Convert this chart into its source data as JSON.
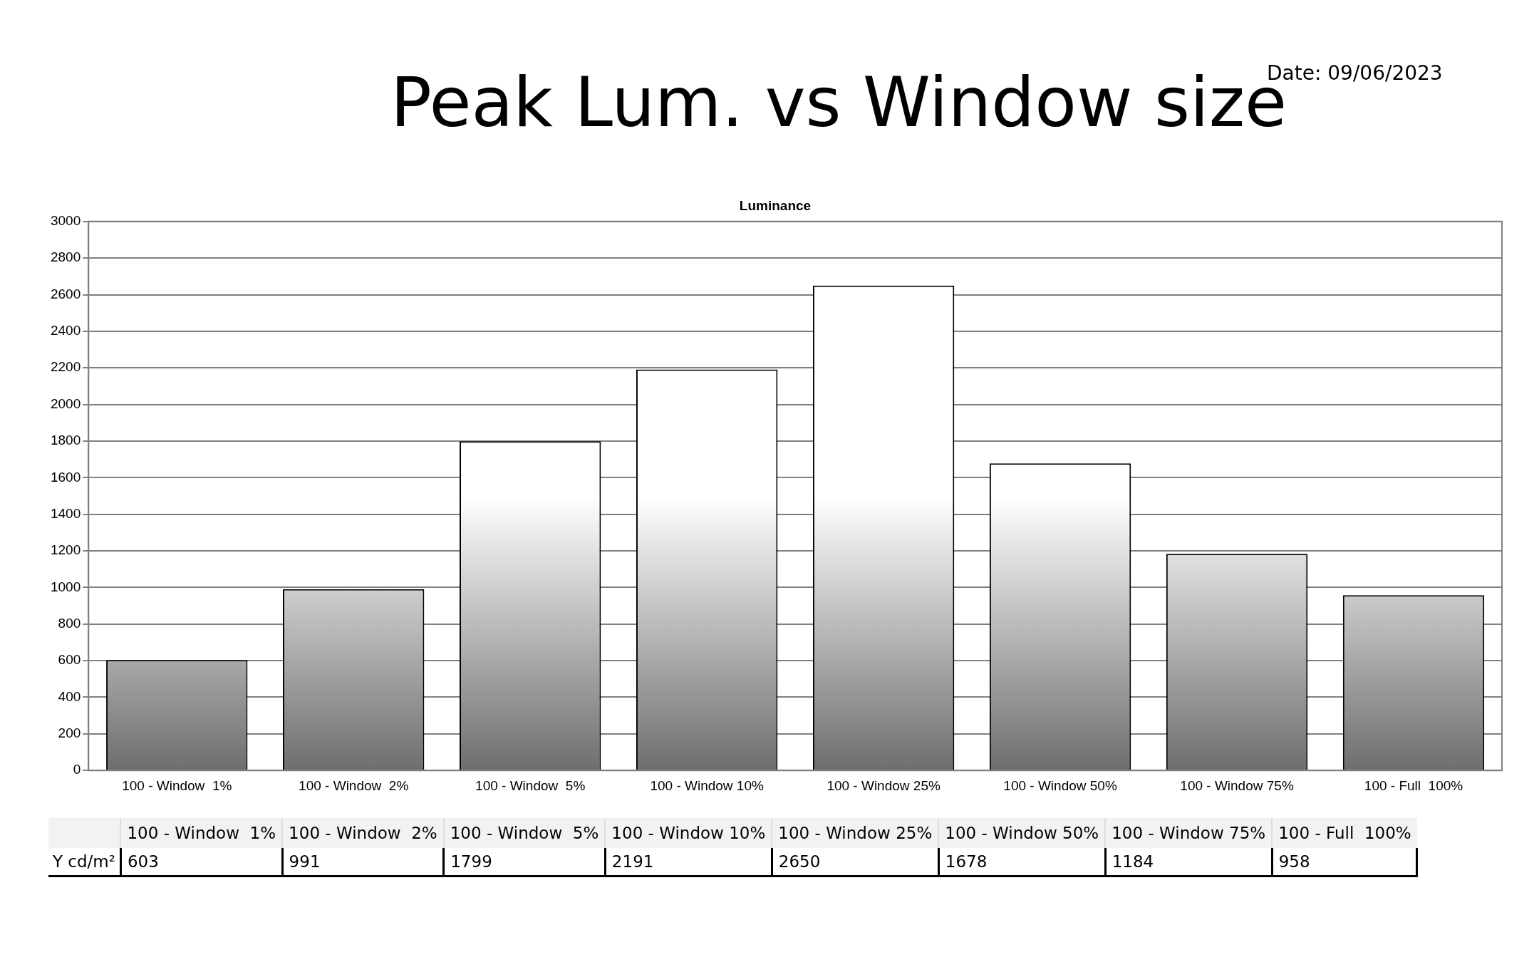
{
  "chart_data": {
    "type": "bar",
    "title": "Peak Lum. vs Window size",
    "subtitle": "Luminance",
    "annotations": [
      "Date: 09/06/2023",
      "Y cd/m²"
    ],
    "categories": [
      "100 - Window  1%",
      "100 - Window  2%",
      "100 - Window  5%",
      "100 - Window 10%",
      "100 - Window 25%",
      "100 - Window 50%",
      "100 - Window 75%",
      "100 - Full  100%"
    ],
    "values": [
      603,
      991,
      1799,
      2191,
      2650,
      1678,
      1184,
      958
    ],
    "color": "#6e6e6e",
    "ylim": [
      0,
      3000
    ],
    "yticks": [
      0,
      200,
      400,
      600,
      800,
      1000,
      1200,
      1400,
      1600,
      1800,
      2000,
      2200,
      2400,
      2600,
      2800,
      3000
    ],
    "grid": "y",
    "legend": false,
    "data_labels": true
  }
}
